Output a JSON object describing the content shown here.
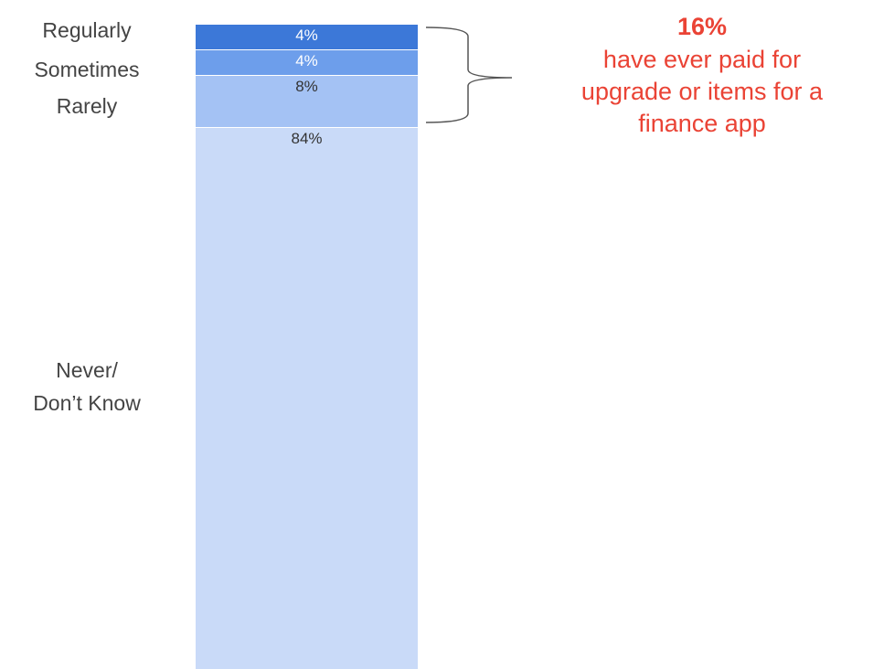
{
  "chart_data": {
    "type": "stacked_bar",
    "categories": [
      "Regularly",
      "Sometimes",
      "Rarely",
      "Never/\nDon’t Know"
    ],
    "values": [
      4,
      4,
      8,
      84
    ],
    "value_labels": [
      "4%",
      "4%",
      "8%",
      "84%"
    ],
    "colors": [
      "#3c78d8",
      "#6d9eeb",
      "#a4c2f4",
      "#c9daf8"
    ],
    "ylim": [
      0,
      100
    ],
    "annotation": {
      "headline": "16%",
      "text": "have ever paid for\nupgrade or items for a\nfinance app"
    }
  }
}
